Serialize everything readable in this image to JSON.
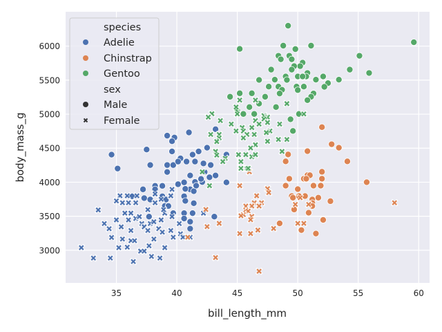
{
  "chart_data": {
    "type": "scatter",
    "title": "",
    "xlabel": "bill_length_mm",
    "ylabel": "body_mass_g",
    "xlim": [
      30.8,
      60.9
    ],
    "ylim": [
      2520,
      6505
    ],
    "xticks": [
      35,
      40,
      45,
      50,
      55,
      60
    ],
    "yticks": [
      3000,
      3500,
      4000,
      4500,
      5000,
      5500,
      6000
    ],
    "grid": true,
    "legend": {
      "placement": "top-left",
      "hue_title": "species",
      "style_title": "sex",
      "hue_entries": [
        {
          "label": "Adelie",
          "color": "#4C72B0"
        },
        {
          "label": "Chinstrap",
          "color": "#DD8452"
        },
        {
          "label": "Gentoo",
          "color": "#55A868"
        }
      ],
      "style_entries": [
        {
          "label": "Male",
          "marker": "circle"
        },
        {
          "label": "Female",
          "marker": "x"
        }
      ]
    },
    "series": [
      {
        "species": "Adelie",
        "sex": "Male",
        "points": [
          [
            39.2,
            4684
          ],
          [
            39.8,
            4656
          ],
          [
            39.6,
            4602
          ],
          [
            41.0,
            4731
          ],
          [
            43.2,
            4779
          ],
          [
            34.6,
            4405
          ],
          [
            35.1,
            4201
          ],
          [
            37.5,
            4480
          ],
          [
            39.6,
            4452
          ],
          [
            37.8,
            4252
          ],
          [
            39.2,
            4252
          ],
          [
            39.7,
            4252
          ],
          [
            39.2,
            4150
          ],
          [
            40.3,
            4350
          ],
          [
            40.1,
            4303
          ],
          [
            40.8,
            4303
          ],
          [
            41.5,
            4303
          ],
          [
            41.3,
            4405
          ],
          [
            41.8,
            4452
          ],
          [
            42.5,
            4507
          ],
          [
            42.2,
            4276
          ],
          [
            42.8,
            4252
          ],
          [
            44.1,
            4405
          ],
          [
            41.1,
            4099
          ],
          [
            41.5,
            4003
          ],
          [
            42.1,
            4003
          ],
          [
            42.7,
            4072
          ],
          [
            43.2,
            4099
          ],
          [
            44.1,
            3997
          ],
          [
            40.6,
            3997
          ],
          [
            40.1,
            3970
          ],
          [
            41.1,
            3895
          ],
          [
            41.4,
            3868
          ],
          [
            41.6,
            3949
          ],
          [
            42.3,
            4150
          ],
          [
            42.0,
            4048
          ],
          [
            40.7,
            3902
          ],
          [
            37.2,
            3895
          ],
          [
            38.2,
            3946
          ],
          [
            38.8,
            3946
          ],
          [
            38.2,
            3895
          ],
          [
            36.3,
            3793
          ],
          [
            37.3,
            3766
          ],
          [
            37.8,
            3745
          ],
          [
            38.8,
            3793
          ],
          [
            39.1,
            3745
          ],
          [
            40.6,
            3793
          ],
          [
            40.7,
            3725
          ],
          [
            41.4,
            3691
          ],
          [
            39.0,
            3650
          ],
          [
            39.3,
            3650
          ],
          [
            39.7,
            3545
          ],
          [
            40.6,
            3545
          ],
          [
            41.3,
            3545
          ],
          [
            37.7,
            3494
          ],
          [
            40.6,
            3466
          ],
          [
            41.1,
            3419
          ],
          [
            41.1,
            3317
          ],
          [
            43.1,
            3494
          ]
        ]
      },
      {
        "species": "Adelie",
        "sex": "Female",
        "points": [
          [
            32.1,
            3038
          ],
          [
            33.1,
            2885
          ],
          [
            34.5,
            2885
          ],
          [
            36.4,
            2834
          ],
          [
            37.9,
            2909
          ],
          [
            38.6,
            2885
          ],
          [
            33.5,
            3592
          ],
          [
            34.0,
            3392
          ],
          [
            34.4,
            3317
          ],
          [
            34.6,
            3188
          ],
          [
            35.0,
            3446
          ],
          [
            35.2,
            3038
          ],
          [
            35.3,
            3800
          ],
          [
            35.0,
            3725
          ],
          [
            35.5,
            3698
          ],
          [
            35.9,
            3800
          ],
          [
            36.0,
            3698
          ],
          [
            36.6,
            3698
          ],
          [
            36.7,
            3800
          ],
          [
            35.7,
            3545
          ],
          [
            36.2,
            3545
          ],
          [
            36.0,
            3446
          ],
          [
            35.4,
            3344
          ],
          [
            36.2,
            3290
          ],
          [
            35.5,
            3164
          ],
          [
            35.9,
            3045
          ],
          [
            36.2,
            3140
          ],
          [
            36.5,
            3140
          ],
          [
            36.6,
            3466
          ],
          [
            36.9,
            3494
          ],
          [
            37.1,
            3392
          ],
          [
            37.3,
            3344
          ],
          [
            37.6,
            3290
          ],
          [
            37.6,
            3596
          ],
          [
            37.8,
            3392
          ],
          [
            38.1,
            3419
          ],
          [
            38.5,
            3317
          ],
          [
            38.8,
            3266
          ],
          [
            38.7,
            3446
          ],
          [
            37.7,
            3065
          ],
          [
            38.1,
            3164
          ],
          [
            37.0,
            2987
          ],
          [
            37.3,
            2987
          ],
          [
            39.0,
            3038
          ],
          [
            39.5,
            3290
          ],
          [
            39.7,
            3191
          ],
          [
            40.3,
            3242
          ],
          [
            40.5,
            3191
          ],
          [
            41.1,
            3191
          ],
          [
            40.2,
            3392
          ],
          [
            39.6,
            3494
          ],
          [
            39.0,
            3545
          ],
          [
            38.9,
            3596
          ],
          [
            38.2,
            3698
          ],
          [
            38.2,
            3827
          ],
          [
            38.7,
            3749
          ],
          [
            39.5,
            3800
          ],
          [
            39.6,
            3895
          ],
          [
            42.2,
            3545
          ]
        ]
      },
      {
        "species": "Chinstrap",
        "sex": "Male",
        "points": [
          [
            52.0,
            4809
          ],
          [
            52.8,
            4558
          ],
          [
            53.4,
            4507
          ],
          [
            54.1,
            4306
          ],
          [
            49.2,
            4408
          ],
          [
            49.0,
            4306
          ],
          [
            50.8,
            4456
          ],
          [
            52.0,
            4153
          ],
          [
            52.0,
            4051
          ],
          [
            51.9,
            3949
          ],
          [
            51.3,
            3949
          ],
          [
            50.8,
            4102
          ],
          [
            51.0,
            4102
          ],
          [
            50.5,
            4051
          ],
          [
            50.7,
            4051
          ],
          [
            49.3,
            4051
          ],
          [
            49.0,
            3949
          ],
          [
            50.0,
            3898
          ],
          [
            55.7,
            4000
          ],
          [
            49.5,
            3796
          ],
          [
            49.6,
            3772
          ],
          [
            50.1,
            3796
          ],
          [
            50.6,
            3796
          ],
          [
            51.2,
            3745
          ],
          [
            51.7,
            3772
          ],
          [
            52.7,
            3721
          ],
          [
            51.2,
            3694
          ],
          [
            51.2,
            3650
          ],
          [
            49.7,
            3599
          ],
          [
            50.9,
            3551
          ],
          [
            52.1,
            3446
          ],
          [
            48.5,
            3395
          ],
          [
            50.3,
            3296
          ],
          [
            51.5,
            3245
          ]
        ]
      },
      {
        "species": "Chinstrap",
        "sex": "Female",
        "points": [
          [
            58.0,
            3698
          ],
          [
            47.5,
            3905
          ],
          [
            47.6,
            3847
          ],
          [
            46.6,
            3800
          ],
          [
            45.2,
            3949
          ],
          [
            47.0,
            3698
          ],
          [
            46.4,
            3698
          ],
          [
            46.8,
            3650
          ],
          [
            46.2,
            3650
          ],
          [
            45.7,
            3650
          ],
          [
            45.7,
            3592
          ],
          [
            45.9,
            3575
          ],
          [
            45.5,
            3524
          ],
          [
            45.3,
            3507
          ],
          [
            46.2,
            3497
          ],
          [
            46.1,
            3449
          ],
          [
            45.2,
            3245
          ],
          [
            46.1,
            3245
          ],
          [
            46.7,
            3296
          ],
          [
            48.0,
            3320
          ],
          [
            49.8,
            3674
          ],
          [
            50.9,
            3674
          ],
          [
            50.2,
            3772
          ],
          [
            50.0,
            3395
          ],
          [
            50.5,
            3395
          ],
          [
            43.5,
            3395
          ],
          [
            42.5,
            3347
          ],
          [
            42.4,
            3599
          ],
          [
            43.2,
            2892
          ],
          [
            46.8,
            2691
          ],
          [
            40.9,
            3191
          ],
          [
            46.0,
            4153
          ]
        ]
      },
      {
        "species": "Gentoo",
        "sex": "Male",
        "points": [
          [
            49.2,
            6300
          ],
          [
            45.2,
            5959
          ],
          [
            48.8,
            6007
          ],
          [
            51.1,
            6007
          ],
          [
            49.8,
            5956
          ],
          [
            59.6,
            6057
          ],
          [
            55.1,
            5858
          ],
          [
            48.4,
            5858
          ],
          [
            48.6,
            5807
          ],
          [
            49.3,
            5858
          ],
          [
            49.5,
            5807
          ],
          [
            50.4,
            5757
          ],
          [
            50.2,
            5706
          ],
          [
            49.7,
            5706
          ],
          [
            49.5,
            5655
          ],
          [
            47.8,
            5655
          ],
          [
            54.3,
            5655
          ],
          [
            55.9,
            5605
          ],
          [
            50.8,
            5605
          ],
          [
            50.7,
            5554
          ],
          [
            50.0,
            5554
          ],
          [
            50.4,
            5554
          ],
          [
            49.0,
            5554
          ],
          [
            49.1,
            5503
          ],
          [
            48.1,
            5507
          ],
          [
            46.8,
            5503
          ],
          [
            51.5,
            5507
          ],
          [
            52.1,
            5554
          ],
          [
            52.5,
            5456
          ],
          [
            52.2,
            5402
          ],
          [
            53.4,
            5507
          ],
          [
            47.6,
            5405
          ],
          [
            48.4,
            5405
          ],
          [
            48.7,
            5358
          ],
          [
            48.5,
            5304
          ],
          [
            49.9,
            5405
          ],
          [
            50.5,
            5405
          ],
          [
            50.0,
            5354
          ],
          [
            51.3,
            5304
          ],
          [
            51.1,
            5256
          ],
          [
            50.8,
            5206
          ],
          [
            44.4,
            5256
          ],
          [
            45.2,
            5307
          ],
          [
            46.2,
            5307
          ],
          [
            47.3,
            5256
          ],
          [
            46.0,
            5104
          ],
          [
            46.8,
            5155
          ],
          [
            45.0,
            5054
          ],
          [
            45.5,
            5003
          ],
          [
            46.4,
            5003
          ],
          [
            48.2,
            5104
          ],
          [
            50.1,
            5003
          ],
          [
            49.4,
            4925
          ],
          [
            49.6,
            4753
          ]
        ]
      },
      {
        "species": "Gentoo",
        "sex": "Female",
        "points": [
          [
            45.2,
            5206
          ],
          [
            46.5,
            5206
          ],
          [
            49.1,
            5155
          ],
          [
            50.5,
            5003
          ],
          [
            44.9,
            5104
          ],
          [
            45.0,
            5003
          ],
          [
            42.9,
            5006
          ],
          [
            42.6,
            4956
          ],
          [
            43.6,
            4905
          ],
          [
            44.5,
            4854
          ],
          [
            46.5,
            4905
          ],
          [
            47.2,
            4979
          ],
          [
            47.5,
            4956
          ],
          [
            47.2,
            4929
          ],
          [
            47.5,
            4878
          ],
          [
            46.8,
            4854
          ],
          [
            48.5,
            4854
          ],
          [
            45.4,
            4803
          ],
          [
            46.2,
            4803
          ],
          [
            44.9,
            4753
          ],
          [
            45.5,
            4753
          ],
          [
            47.7,
            4753
          ],
          [
            47.4,
            4729
          ],
          [
            45.8,
            4702
          ],
          [
            46.4,
            4702
          ],
          [
            43.5,
            4702
          ],
          [
            42.8,
            4702
          ],
          [
            43.5,
            4651
          ],
          [
            43.3,
            4597
          ],
          [
            45.5,
            4651
          ],
          [
            49.1,
            4628
          ],
          [
            48.4,
            4628
          ],
          [
            47.5,
            4601
          ],
          [
            46.5,
            4550
          ],
          [
            46.1,
            4503
          ],
          [
            48.7,
            4452
          ],
          [
            43.2,
            4452
          ],
          [
            43.3,
            4398
          ],
          [
            44.0,
            4351
          ],
          [
            43.8,
            4303
          ],
          [
            45.1,
            4405
          ],
          [
            45.7,
            4405
          ],
          [
            46.2,
            4374
          ],
          [
            46.5,
            4405
          ],
          [
            45.3,
            4303
          ],
          [
            45.3,
            4202
          ],
          [
            45.8,
            4202
          ],
          [
            42.1,
            4152
          ],
          [
            42.7,
            3949
          ],
          [
            45.3,
            4204
          ],
          [
            45.9,
            4204
          ]
        ]
      }
    ]
  }
}
